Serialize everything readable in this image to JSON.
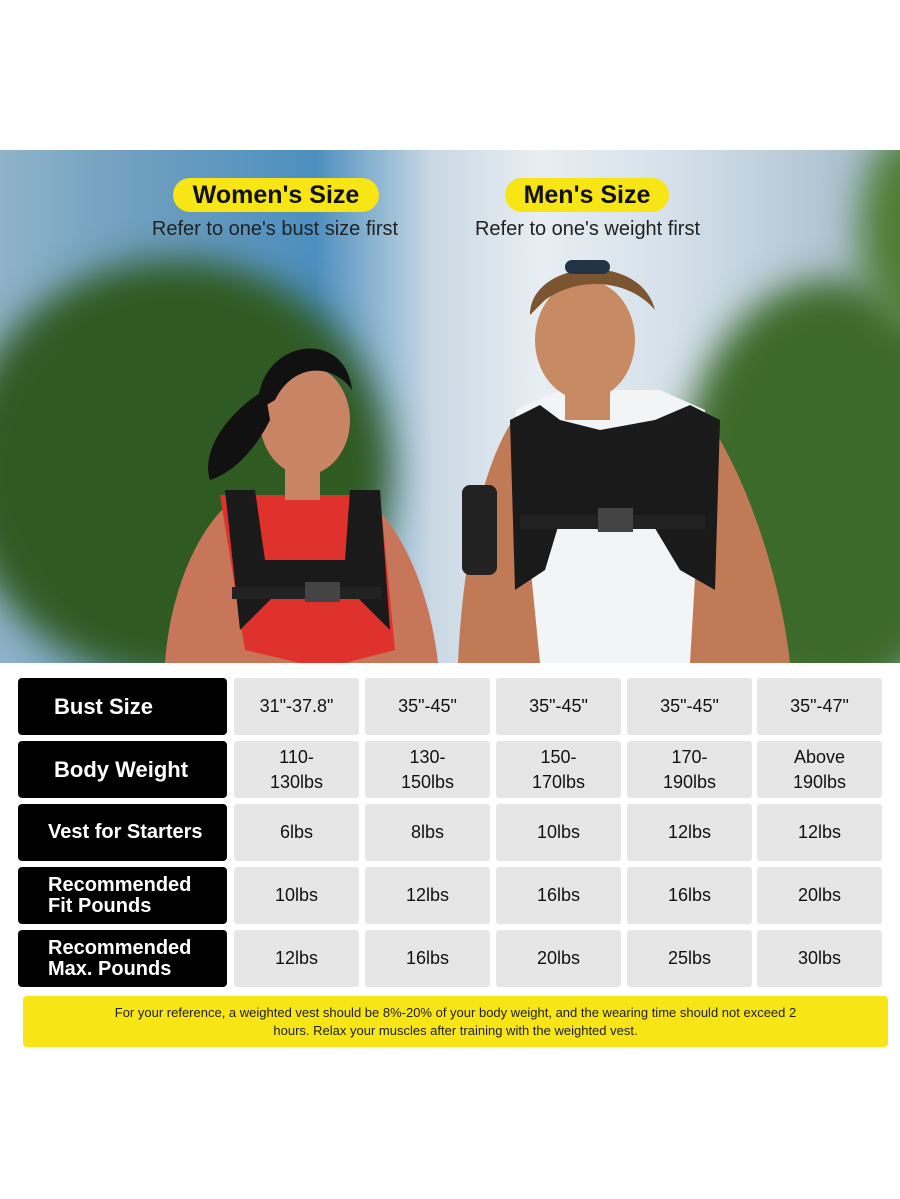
{
  "header": {
    "women": {
      "title": "Women's Size",
      "subtitle": "Refer to one's bust size first"
    },
    "men": {
      "title": "Men's Size",
      "subtitle": "Refer to one's weight first"
    }
  },
  "table": {
    "rows": [
      {
        "label": "Bust Size",
        "values": [
          "31\"-37.8\"",
          "35\"-45\"",
          "35\"-45\"",
          "35\"-45\"",
          "35\"-47\""
        ]
      },
      {
        "label": "Body Weight",
        "values": [
          "110-\n130lbs",
          "130-\n150lbs",
          "150-\n170lbs",
          "170-\n190lbs",
          "Above\n190lbs"
        ]
      },
      {
        "label": "Vest for Starters",
        "values": [
          "6lbs",
          "8lbs",
          "10lbs",
          "12lbs",
          "12lbs"
        ]
      },
      {
        "label": "Recommended\nFit Pounds",
        "values": [
          "10lbs",
          "12lbs",
          "16lbs",
          "16lbs",
          "20lbs"
        ]
      },
      {
        "label": "Recommended\nMax. Pounds",
        "values": [
          "12lbs",
          "16lbs",
          "20lbs",
          "25lbs",
          "30lbs"
        ]
      }
    ]
  },
  "note": "For your reference, a weighted vest should be 8%-20% of your body weight, and the wearing time should not exceed 2 hours. Relax your muscles after training with the weighted vest.",
  "colors": {
    "accent": "#f7e515",
    "label_bg": "#000000",
    "cell_bg": "#e6e6e6"
  }
}
